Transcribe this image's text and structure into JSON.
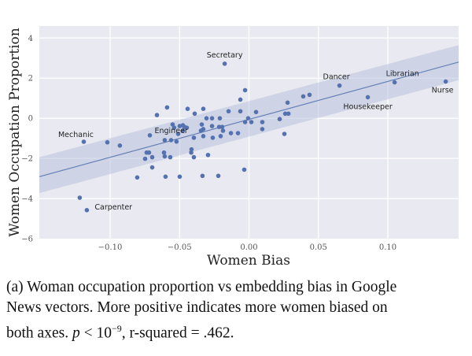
{
  "chart_data": {
    "type": "scatter",
    "xlabel": "Women Bias",
    "ylabel": "Women Occupation Proportion",
    "xlim": [
      -0.151,
      0.151
    ],
    "ylim": [
      -6,
      4.6
    ],
    "xticks": [
      -0.1,
      -0.05,
      0.0,
      0.05,
      0.1
    ],
    "xtick_labels": [
      "−0.10",
      "−0.05",
      "0.00",
      "0.05",
      "0.10"
    ],
    "yticks": [
      -6,
      -4,
      -2,
      0,
      2,
      4
    ],
    "ytick_labels": [
      "−6",
      "−4",
      "−2",
      "0",
      "2",
      "4"
    ],
    "grid": true,
    "regression": {
      "x": [
        -0.151,
        0.151
      ],
      "y": [
        -2.91,
        2.8
      ],
      "ci_low": [
        -3.73,
        1.9
      ],
      "ci_high": [
        -1.94,
        3.65
      ]
    },
    "colors": {
      "point": "#5572b0",
      "line": "#6480b5",
      "band": "#b8c3dd",
      "bg": "#e8e9f1",
      "grid": "#ffffff"
    },
    "labeled_points": [
      {
        "label": "Secretary",
        "x": -0.0175,
        "y": 2.72
      },
      {
        "label": "Dancer",
        "x": 0.0652,
        "y": 1.63
      },
      {
        "label": "Librarian",
        "x": 0.1049,
        "y": 1.79
      },
      {
        "label": "Nurse",
        "x": 0.1417,
        "y": 1.83
      },
      {
        "label": "Housekeeper",
        "x": 0.0856,
        "y": 1.05
      },
      {
        "label": "Mechanic",
        "x": -0.119,
        "y": -1.17
      },
      {
        "label": "Engineer",
        "x": -0.0714,
        "y": -0.85
      },
      {
        "label": "Carpenter",
        "x": -0.1168,
        "y": -4.58
      }
    ],
    "points": [
      [
        -0.102,
        -1.2
      ],
      [
        -0.093,
        -1.36
      ],
      [
        -0.0737,
        -1.71
      ],
      [
        -0.072,
        -1.71
      ],
      [
        -0.0748,
        -2.02
      ],
      [
        -0.0697,
        -1.94
      ],
      [
        -0.0697,
        -2.45
      ],
      [
        -0.0805,
        -2.95
      ],
      [
        -0.1219,
        -3.96
      ],
      [
        -0.0607,
        -1.9
      ],
      [
        -0.059,
        0.54
      ],
      [
        -0.0663,
        0.16
      ],
      [
        -0.0442,
        0.47
      ],
      [
        -0.0391,
        0.23
      ],
      [
        -0.0329,
        0.47
      ],
      [
        -0.0306,
        0.0
      ],
      [
        -0.0266,
        0.0
      ],
      [
        -0.0266,
        -0.39
      ],
      [
        -0.021,
        0.0
      ],
      [
        -0.055,
        -0.31
      ],
      [
        -0.0539,
        -0.47
      ],
      [
        -0.0499,
        -0.39
      ],
      [
        -0.0476,
        -0.35
      ],
      [
        -0.0465,
        -0.43
      ],
      [
        -0.0448,
        -0.47
      ],
      [
        -0.0476,
        -0.62
      ],
      [
        -0.051,
        -0.78
      ],
      [
        -0.034,
        -0.31
      ],
      [
        -0.0329,
        -0.54
      ],
      [
        -0.0346,
        -0.62
      ],
      [
        -0.0329,
        -0.89
      ],
      [
        -0.0261,
        -0.97
      ],
      [
        -0.0215,
        -0.43
      ],
      [
        -0.0397,
        -0.97
      ],
      [
        -0.0607,
        -1.09
      ],
      [
        -0.0561,
        -1.09
      ],
      [
        -0.0522,
        -1.16
      ],
      [
        -0.0414,
        -1.55
      ],
      [
        -0.0416,
        -1.71
      ],
      [
        -0.0397,
        -1.94
      ],
      [
        -0.0295,
        -1.83
      ],
      [
        -0.0612,
        -1.71
      ],
      [
        -0.0567,
        -1.94
      ],
      [
        -0.0499,
        -2.91
      ],
      [
        -0.0601,
        -2.91
      ],
      [
        -0.0335,
        -2.87
      ],
      [
        -0.0221,
        -2.87
      ],
      [
        -0.0034,
        -2.56
      ],
      [
        -0.0062,
        0.93
      ],
      [
        -0.0147,
        0.35
      ],
      [
        -0.0062,
        0.35
      ],
      [
        -0.0006,
        0.0
      ],
      [
        0.0051,
        0.31
      ],
      [
        0.0096,
        -0.19
      ],
      [
        0.0096,
        -0.54
      ],
      [
        0.0221,
        -0.04
      ],
      [
        0.0261,
        0.23
      ],
      [
        0.0284,
        0.23
      ],
      [
        0.0278,
        0.78
      ],
      [
        0.0391,
        1.09
      ],
      [
        0.0436,
        1.17
      ],
      [
        0.0255,
        -0.78
      ],
      [
        -0.0193,
        -0.43
      ],
      [
        -0.0187,
        -0.62
      ],
      [
        -0.0204,
        -0.89
      ],
      [
        -0.013,
        -0.74
      ],
      [
        -0.0028,
        -0.19
      ],
      [
        0.0017,
        -0.19
      ],
      [
        -0.0079,
        -0.74
      ],
      [
        -0.0028,
        1.4
      ]
    ]
  },
  "caption": {
    "line1": "(a) Woman occupation proportion vs embedding bias in Google",
    "line2": "News vectors. More positive indicates more women biased on",
    "line3_prefix": "both axes. ",
    "line3_p": "p",
    "line3_lt": " < 10",
    "line3_exp": "−9",
    "line3_suffix": ", r-squared = .462."
  }
}
